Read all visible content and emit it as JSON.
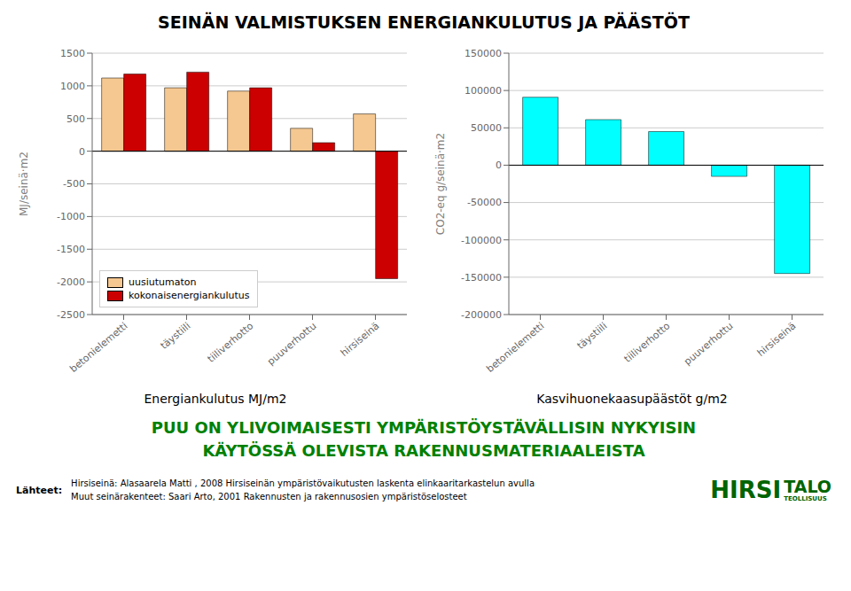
{
  "title": "SEINÄN VALMISTUKSEN ENERGIANKULUTUS JA PÄÄSTÖT",
  "chart_data": [
    {
      "type": "bar",
      "categories": [
        "betonielemetti",
        "täystiili",
        "tiiliverhotto",
        "puuverhottu",
        "hirsiseinä"
      ],
      "series": [
        {
          "name": "uusiutumaton",
          "color": "#F5C891",
          "values": [
            1120,
            970,
            920,
            350,
            570
          ]
        },
        {
          "name": "kokonaisenergiankulutus",
          "color": "#CC0000",
          "values": [
            1180,
            1210,
            970,
            130,
            -1950
          ]
        }
      ],
      "y_label": "MJ/seinä·m2",
      "x_label": "Energiankulutus MJ/m2",
      "ylim": [
        -2500,
        1500
      ],
      "yticks": [
        -2500,
        -2000,
        -1500,
        -1000,
        -500,
        0,
        500,
        1000,
        1500
      ],
      "grid": true,
      "legend": "lower left"
    },
    {
      "type": "bar",
      "categories": [
        "betonielemetti",
        "täystiili",
        "tiiliverhotto",
        "puuverhottu",
        "hirsiseinä"
      ],
      "values": [
        91000,
        61000,
        45000,
        -15000,
        -145000
      ],
      "color": "#00FFFF",
      "y_label": "CO2-eq g/seinä·m2",
      "x_label": "Kasvihuonekaasupäästöt g/m2",
      "ylim": [
        -200000,
        150000
      ],
      "yticks": [
        -200000,
        -150000,
        -100000,
        -50000,
        0,
        50000,
        100000,
        150000
      ],
      "grid": true
    }
  ],
  "annotations": [
    {
      "text": "PUU ON YLIVOIMAISESTI YMPÄRISTÖYSTÄVÄLLISIN NYKYISIN",
      "color": "#008000"
    },
    {
      "text": "KÄYTÖSSÄ OLEVISTA RAKENNUSMATERIAALEISTA",
      "color": "#008000"
    },
    {
      "text": "Lähteet:",
      "color": "#000000"
    },
    {
      "text": "Hirsiseinä: Alasaarela Matti , 2008 Hirsiseinän ympäristövaikutusten laskenta elinkaaritarkastelun avulla",
      "color": "#000000"
    },
    {
      "text": "Muut seinärakenteet: Saari Arto, 2001 Rakennusten ja rakennusosien ympäristöselosteet",
      "color": "#000000"
    },
    {
      "text": "HIRSI",
      "color": "#006400"
    },
    {
      "text": "TALO",
      "color": "#006400"
    },
    {
      "text": "TEOLLISUUS",
      "color": "#006400"
    }
  ]
}
